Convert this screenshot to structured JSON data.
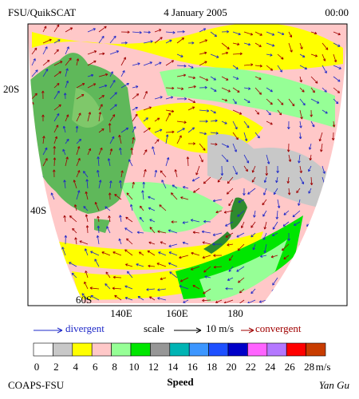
{
  "header": {
    "source": "FSU/QuikSCAT",
    "date": "4 January 2005",
    "time": "00:00"
  },
  "map": {
    "lat_labels": [
      "20S",
      "40S",
      "60S"
    ],
    "lon_labels": [
      "140E",
      "160E",
      "180"
    ]
  },
  "legend": {
    "divergent": "divergent",
    "scale": "scale",
    "scale_value": "10 m/s",
    "convergent": "convergent"
  },
  "colorbar": {
    "colors": [
      "#ffffff",
      "#c8c8c8",
      "#ffff00",
      "#ffc8c8",
      "#96ff96",
      "#00e600",
      "#969696",
      "#00b4b4",
      "#3c96ff",
      "#1e50ff",
      "#0000c8",
      "#ff64ff",
      "#b478ff",
      "#ff0000",
      "#c83c00",
      "#000000"
    ],
    "labels": [
      0,
      2,
      4,
      6,
      8,
      10,
      12,
      14,
      16,
      18,
      20,
      22,
      24,
      26,
      28
    ],
    "unit": "m/s",
    "title": "Speed"
  },
  "footer": {
    "left": "COAPS-FSU",
    "right": "Yan Gu"
  }
}
